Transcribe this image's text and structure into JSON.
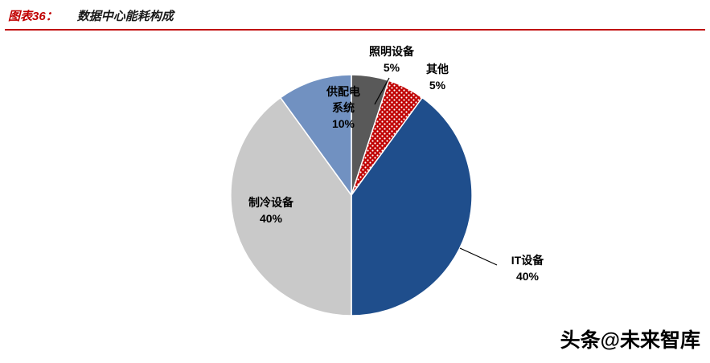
{
  "header": {
    "prefix": "图表36：",
    "title": "数据中心能耗构成"
  },
  "watermark": "头条@未来智库",
  "colors": {
    "header_accent": "#C00000",
    "divider": "#C00000"
  },
  "chart_data": {
    "type": "pie",
    "title": "数据中心能耗构成",
    "unit": "%",
    "start_angle_deg": 0,
    "direction": "clockwise",
    "legend_position": "none",
    "slices": [
      {
        "key": "lighting",
        "label": "照明设备",
        "value": 5,
        "pct": "5%",
        "color": "#595959",
        "fill": "solid"
      },
      {
        "key": "other",
        "label": "其他",
        "value": 5,
        "pct": "5%",
        "color": "#C00000",
        "fill": "white-dots"
      },
      {
        "key": "it",
        "label": "IT设备",
        "value": 40,
        "pct": "40%",
        "color": "#1F4E8C",
        "fill": "solid"
      },
      {
        "key": "cooling",
        "label": "制冷设备",
        "value": 40,
        "pct": "40%",
        "color": "#C9C9C9",
        "fill": "solid"
      },
      {
        "key": "power",
        "label": "供配电系统",
        "value": 10,
        "pct": "10%",
        "color": "#7191C1",
        "fill": "solid"
      }
    ]
  },
  "callouts": {
    "lighting": {
      "lines": [
        "照明设备",
        "5%"
      ]
    },
    "other": {
      "lines": [
        "其他",
        "5%"
      ]
    },
    "power": {
      "lines": [
        "供配电",
        "系统",
        "10%"
      ]
    },
    "cooling": {
      "lines": [
        "制冷设备",
        "40%"
      ]
    },
    "it": {
      "lines": [
        "IT设备",
        "40%"
      ]
    }
  }
}
